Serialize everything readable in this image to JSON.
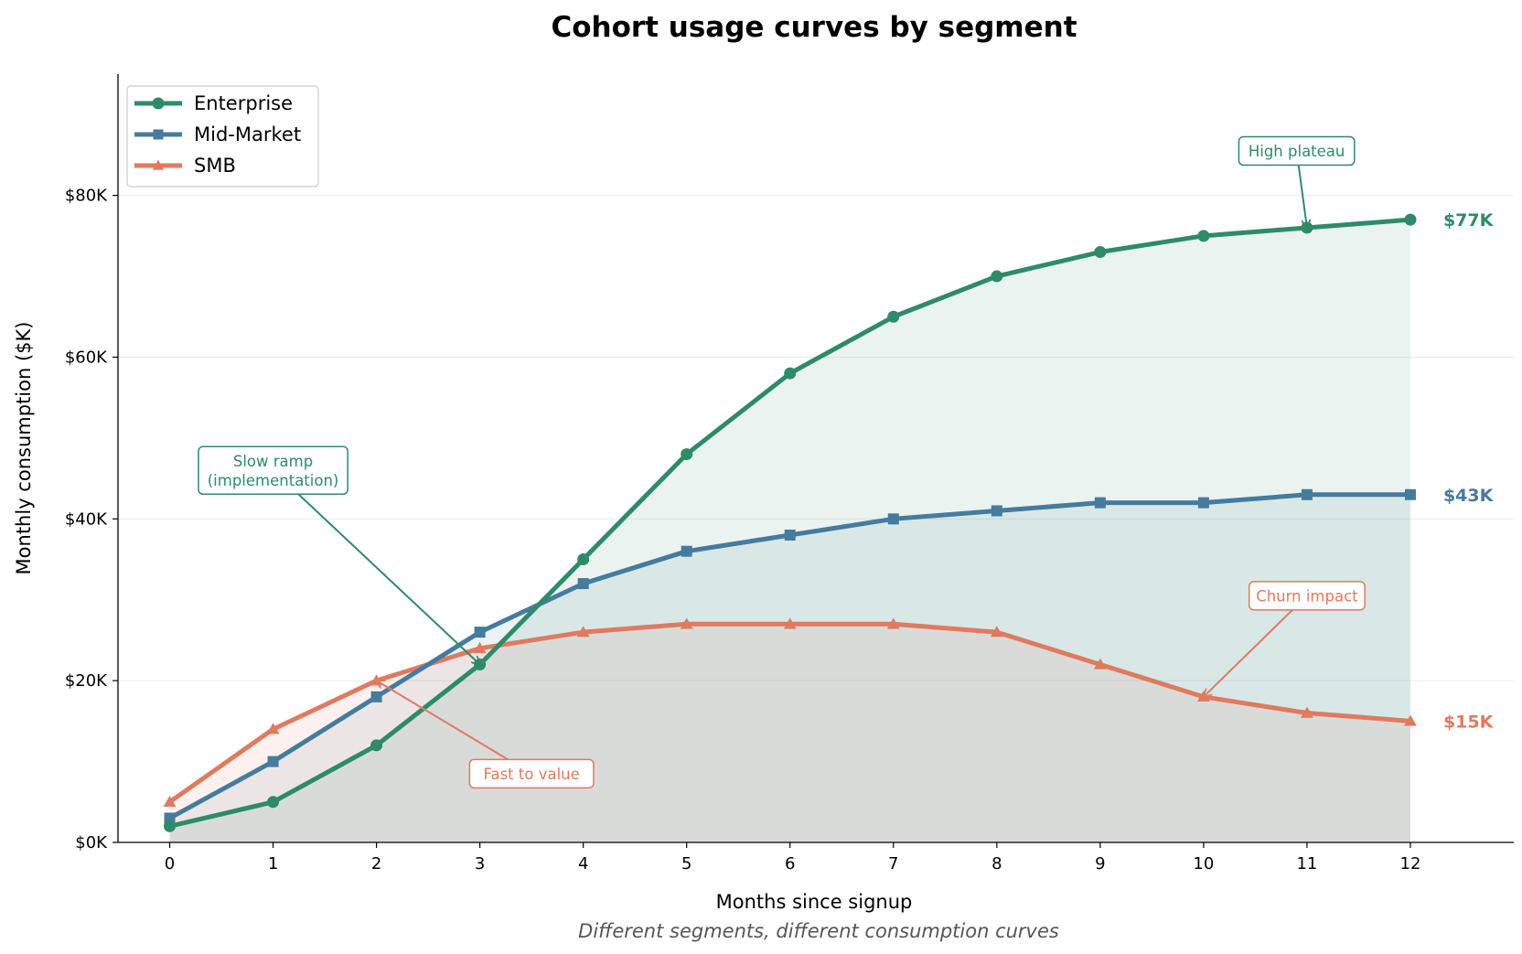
{
  "chart_data": {
    "type": "line",
    "title": "Cohort usage curves by segment",
    "xlabel": "Months since signup",
    "ylabel": "Monthly consumption ($K)",
    "caption": "Different segments, different consumption curves",
    "x": [
      0,
      1,
      2,
      3,
      4,
      5,
      6,
      7,
      8,
      9,
      10,
      11,
      12
    ],
    "x_tick_labels": [
      "0",
      "1",
      "2",
      "3",
      "4",
      "5",
      "6",
      "7",
      "8",
      "9",
      "10",
      "11",
      "12"
    ],
    "xlim": [
      -0.5,
      13
    ],
    "ylim": [
      0,
      95
    ],
    "y_ticks": [
      0,
      20,
      40,
      60,
      80
    ],
    "y_tick_labels": [
      "$0K",
      "$20K",
      "$40K",
      "$60K",
      "$80K"
    ],
    "grid": "horizontal",
    "legend_position": "top-left",
    "series": [
      {
        "name": "Enterprise",
        "color": "#2e8b67",
        "marker": "circle",
        "values": [
          2,
          5,
          12,
          22,
          35,
          48,
          58,
          65,
          70,
          73,
          75,
          76,
          77
        ],
        "end_label": "$77K"
      },
      {
        "name": "Mid-Market",
        "color": "#457b9d",
        "marker": "square",
        "values": [
          3,
          10,
          18,
          26,
          32,
          36,
          38,
          40,
          41,
          42,
          42,
          43,
          43
        ],
        "end_label": "$43K"
      },
      {
        "name": "SMB",
        "color": "#e07a5f",
        "marker": "triangle",
        "values": [
          5,
          14,
          20,
          24,
          26,
          27,
          27,
          27,
          26,
          22,
          18,
          16,
          15
        ],
        "end_label": "$15K"
      }
    ],
    "annotations": [
      {
        "lines": [
          "High plateau"
        ],
        "color": "#2e8b67",
        "point": [
          11,
          76
        ],
        "text_at": [
          10.9,
          85.5
        ]
      },
      {
        "lines": [
          "Slow ramp",
          "(implementation)"
        ],
        "color": "#2e8b67",
        "point": [
          3,
          22
        ],
        "text_at": [
          1,
          46
        ]
      },
      {
        "lines": [
          "Fast to value"
        ],
        "color": "#e07a5f",
        "point": [
          2,
          20
        ],
        "text_at": [
          3.5,
          8.5
        ]
      },
      {
        "lines": [
          "Churn impact"
        ],
        "color": "#e07a5f",
        "point": [
          10,
          18
        ],
        "text_at": [
          11,
          30.5
        ]
      }
    ]
  }
}
